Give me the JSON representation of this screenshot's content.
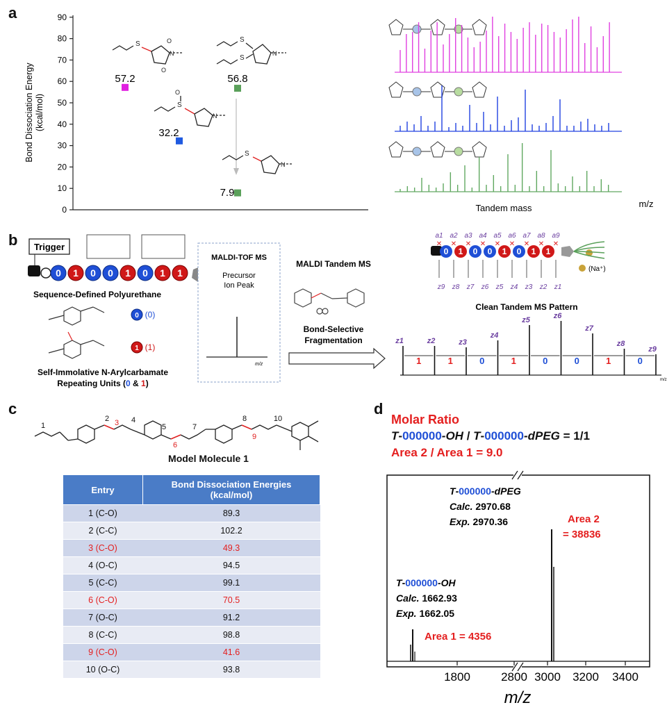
{
  "panel_labels": {
    "a": "a",
    "b": "b",
    "c": "c",
    "d": "d"
  },
  "panel_a": {
    "ylabel_line1": "Bond Dissociation Energy",
    "ylabel_line2": "(kcal/mol)",
    "yticks": [
      "0",
      "10",
      "20",
      "30",
      "40",
      "50",
      "60",
      "70",
      "80",
      "90"
    ],
    "points": [
      {
        "label": "57.2",
        "value": 57.2,
        "color": "#e020e0"
      },
      {
        "label": "32.2",
        "value": 32.2,
        "color": "#1f5ae0"
      },
      {
        "label": "56.8",
        "value": 56.8,
        "color": "#5aa05a"
      },
      {
        "label": "7.9",
        "value": 7.9,
        "color": "#5aa05a"
      }
    ],
    "xlabel": "Tandem mass",
    "xunit": "m/z",
    "spectra_colors": [
      "#e040e0",
      "#2040e0",
      "#60a860"
    ]
  },
  "panel_b": {
    "trigger": "Trigger",
    "sequence": [
      "0",
      "1",
      "0",
      "0",
      "1",
      "0",
      "1",
      "1"
    ],
    "polymer_title": "Sequence-Defined Polyurethane",
    "unit0_label": "(0)",
    "unit1_label": "(1)",
    "unit0_symbol": "0",
    "unit1_symbol": "1",
    "repeating_line1": "Self-Immolative N-Arylcarbamate",
    "repeating_line2_pre": "Repeating Units (",
    "repeating_0": "0",
    "repeating_amp": " & ",
    "repeating_1": "1",
    "repeating_close": ")",
    "maldi_title": "MALDI-TOF MS",
    "precursor_line1": "Precursor",
    "precursor_line2": "Ion Peak",
    "maldi_xunit": "m/z",
    "tandem_title": "MALDI Tandem MS",
    "bond_sel_line1": "Bond-Selective",
    "bond_sel_line2": "Fragmentation",
    "clean_title": "Clean Tandem MS Pattern",
    "na_label": "(Na⁺)",
    "a_ions": [
      "a1",
      "a2",
      "a3",
      "a4",
      "a5",
      "a6",
      "a7",
      "a8",
      "a9"
    ],
    "z_ions": [
      "z9",
      "z8",
      "z7",
      "z6",
      "z5",
      "z4",
      "z3",
      "z2",
      "z1"
    ],
    "pattern_peaks": [
      "z1",
      "z2",
      "z3",
      "z4",
      "z5",
      "z6",
      "z7",
      "z8",
      "z9"
    ],
    "pattern_gaps": [
      "1",
      "1",
      "0",
      "1",
      "0",
      "0",
      "1",
      "0"
    ],
    "pattern_xunit": "m/z"
  },
  "panel_c": {
    "molecule_title": "Model Molecule 1",
    "atom_numbers": [
      "1",
      "2",
      "3",
      "4",
      "5",
      "6",
      "7",
      "8",
      "9",
      "10"
    ],
    "header_entry": "Entry",
    "header_bde_line1": "Bond Dissociation Energies",
    "header_bde_line2": "(kcal/mol)",
    "rows": [
      {
        "entry": "1 (C-O)",
        "value": "89.3",
        "highlight": false
      },
      {
        "entry": "2 (C-C)",
        "value": "102.2",
        "highlight": false
      },
      {
        "entry": "3 (C-O)",
        "value": "49.3",
        "highlight": true
      },
      {
        "entry": "4 (O-C)",
        "value": "94.5",
        "highlight": false
      },
      {
        "entry": "5 (C-C)",
        "value": "99.1",
        "highlight": false
      },
      {
        "entry": "6 (C-O)",
        "value": "70.5",
        "highlight": true
      },
      {
        "entry": "7 (O-C)",
        "value": "91.2",
        "highlight": false
      },
      {
        "entry": "8 (C-C)",
        "value": "98.8",
        "highlight": false
      },
      {
        "entry": "9 (C-O)",
        "value": "41.6",
        "highlight": true
      },
      {
        "entry": "10 (O-C)",
        "value": "93.8",
        "highlight": false
      }
    ]
  },
  "panel_d": {
    "molar_title": "Molar Ratio",
    "ratio_T1": "T",
    "ratio_dash": "-",
    "ratio_code1": "000000",
    "ratio_oh": "-OH",
    "ratio_slash": " / ",
    "ratio_T2": "T",
    "ratio_code2": "000000",
    "ratio_dpeg": "-dPEG",
    "ratio_eq": " = 1/1",
    "area_ratio": "Area 2 / Area 1 = 9.0",
    "peak2_T": "T",
    "peak2_code": "000000",
    "peak2_suffix": "-dPEG",
    "peak2_calc_label": "Calc.",
    "peak2_calc": "2970.68",
    "peak2_exp_label": "Exp.",
    "peak2_exp": "2970.36",
    "area2_line1": "Area 2",
    "area2_line2": "= 38836",
    "peak1_T": "T",
    "peak1_code": "000000",
    "peak1_suffix": "-OH",
    "peak1_calc_label": "Calc.",
    "peak1_calc": "1662.93",
    "peak1_exp_label": "Exp.",
    "peak1_exp": "1662.05",
    "area1": "Area 1 = 4356",
    "xticks": [
      "1800",
      "2800",
      "3000",
      "3200",
      "3400"
    ],
    "xlabel": "m/z"
  }
}
